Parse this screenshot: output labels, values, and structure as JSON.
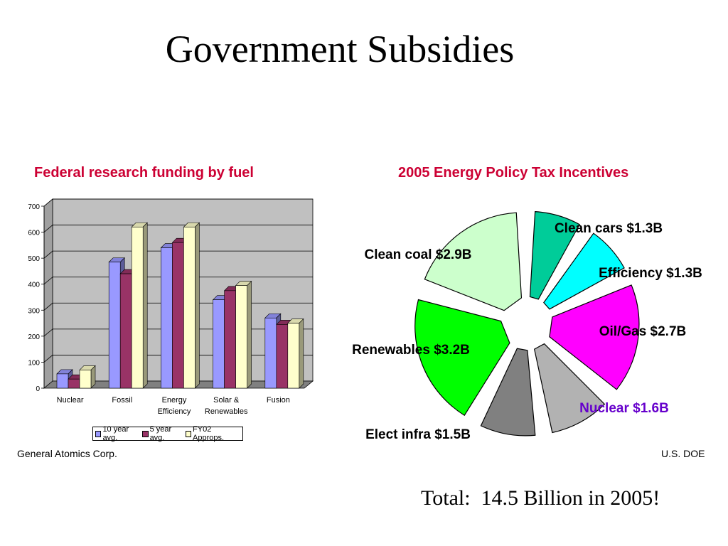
{
  "slide": {
    "title": "Government Subsidies",
    "credit_left": "General Atomics Corp.",
    "credit_right": "U.S. DOE",
    "total": "Total:  14.5 Billion in 2005!"
  },
  "chart_data": [
    {
      "type": "bar",
      "title": "Federal research funding by fuel",
      "categories": [
        "Nuclear",
        "Fossil",
        "Energy Efficiency",
        "Solar & Renewables",
        "Fusion"
      ],
      "category_lines": [
        [
          "Nuclear"
        ],
        [
          "Fossil"
        ],
        [
          "Energy",
          "Efficiency"
        ],
        [
          "Solar &",
          "Renewables"
        ],
        [
          "Fusion"
        ]
      ],
      "series": [
        {
          "name": "10 year avg.",
          "values": [
            55,
            485,
            540,
            340,
            270
          ],
          "color": "#9999ff"
        },
        {
          "name": "5 year avg.",
          "values": [
            35,
            440,
            560,
            375,
            245
          ],
          "color": "#993366"
        },
        {
          "name": "FY02 Approps.",
          "values": [
            70,
            620,
            620,
            395,
            250
          ],
          "color": "#ffffcc"
        }
      ],
      "ylim": [
        0,
        700
      ],
      "yticks": [
        0,
        100,
        200,
        300,
        400,
        500,
        600,
        700
      ],
      "grid": true,
      "legend": "bottom"
    },
    {
      "type": "pie",
      "title": "2005 Energy Policy Tax Incentives",
      "slices": [
        {
          "label": "Clean cars $1.3B",
          "value": 1.3,
          "color": "#00cc99",
          "label_color": "#000000"
        },
        {
          "label": "Efficiency $1.3B",
          "value": 1.3,
          "color": "#00ffff",
          "label_color": "#000000"
        },
        {
          "label": "Oil/Gas $2.7B",
          "value": 2.7,
          "color": "#ff00ff",
          "label_color": "#000000"
        },
        {
          "label": "Nuclear $1.6B",
          "value": 1.6,
          "color": "#b2b2b2",
          "label_color": "#6600cc"
        },
        {
          "label": "Elect infra $1.5B",
          "value": 1.5,
          "color": "#808080",
          "label_color": "#000000"
        },
        {
          "label": "Renewables $3.2B",
          "value": 3.2,
          "color": "#00ff00",
          "label_color": "#000000"
        },
        {
          "label": "Clean coal $2.9B",
          "value": 2.9,
          "color": "#ccffcc",
          "label_color": "#000000"
        }
      ],
      "exploded": true
    }
  ]
}
